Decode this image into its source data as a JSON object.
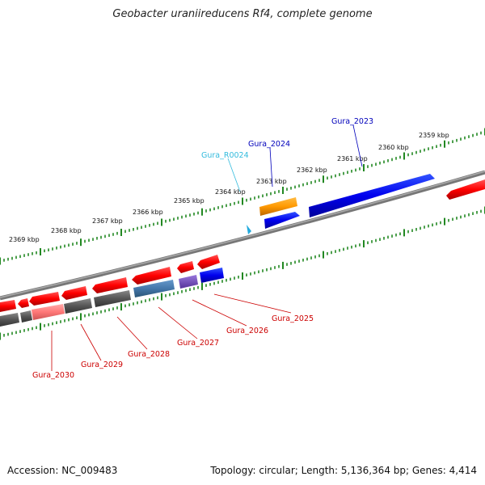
{
  "title": "Geobacter uraniireducens Rf4, complete genome",
  "accession": "Accession: NC_009483",
  "summary": "Topology: circular; Length: 5,136,364 bp; Genes: 4,414",
  "ruler_labels": [
    "2359 kbp",
    "2360 kbp",
    "2361 kbp",
    "2362 kbp",
    "2363 kbp",
    "2364 kbp",
    "2365 kbp",
    "2366 kbp",
    "2367 kbp",
    "2368 kbp",
    "2369 kbp"
  ],
  "gene_labels": [
    {
      "name": "Gura_2023",
      "color": "#0000bb"
    },
    {
      "name": "Gura_2024",
      "color": "#0000bb"
    },
    {
      "name": "Gura_R0024",
      "color": "#33bbdd"
    },
    {
      "name": "Gura_2025",
      "color": "#cc0000"
    },
    {
      "name": "Gura_2026",
      "color": "#cc0000"
    },
    {
      "name": "Gura_2027",
      "color": "#cc0000"
    },
    {
      "name": "Gura_2028",
      "color": "#cc0000"
    },
    {
      "name": "Gura_2029",
      "color": "#cc0000"
    },
    {
      "name": "Gura_2030",
      "color": "#cc0000"
    }
  ],
  "colors": {
    "forward_gene": "#ff0000",
    "reverse_gene": "#0000ee",
    "rna_gene": "#ff9900",
    "cog_gray": "#555555",
    "cog_pink": "#ff7777",
    "cog_steel": "#4477aa",
    "cog_purple": "#7755bb",
    "backbone": "#888888",
    "ticks": "#228822"
  }
}
